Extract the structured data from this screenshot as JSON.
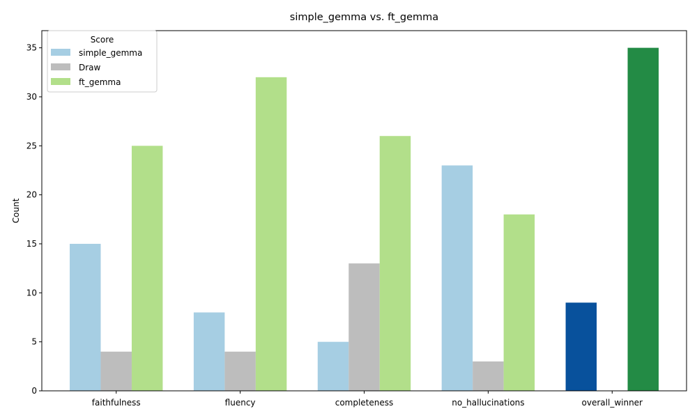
{
  "chart_data": {
    "type": "bar",
    "title": "simple_gemma vs. ft_gemma",
    "xlabel": "",
    "ylabel": "Count",
    "ylim": [
      0,
      36.75
    ],
    "yticks": [
      0,
      5,
      10,
      15,
      20,
      25,
      30,
      35
    ],
    "categories": [
      "faithfulness",
      "fluency",
      "completeness",
      "no_hallucinations",
      "overall_winner"
    ],
    "series": [
      {
        "name": "simple_gemma",
        "color": "#a6cee3",
        "values": [
          15,
          8,
          5,
          23,
          null
        ]
      },
      {
        "name": "Draw",
        "color": "#bdbdbd",
        "values": [
          4,
          4,
          13,
          3,
          null
        ]
      },
      {
        "name": "ft_gemma",
        "color": "#b2df8a",
        "values": [
          25,
          32,
          26,
          18,
          null
        ]
      }
    ],
    "overall_winner": {
      "category": "overall_winner",
      "values": [
        {
          "series": "simple_gemma",
          "value": 9,
          "color": "#08519c"
        },
        {
          "series": "Draw",
          "value": 0,
          "color": "#bdbdbd"
        },
        {
          "series": "ft_gemma",
          "value": 35,
          "color": "#238b45"
        }
      ]
    },
    "legend": {
      "title": "Score",
      "placement": "upper-left"
    },
    "grid": false
  }
}
